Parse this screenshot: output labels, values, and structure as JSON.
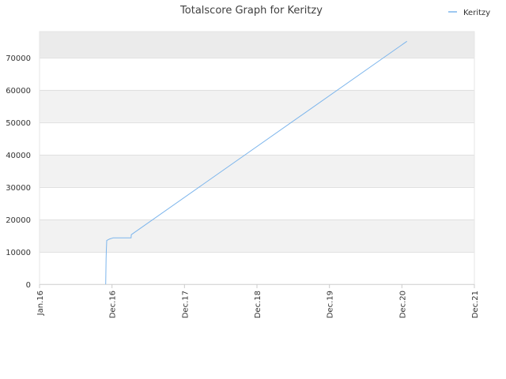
{
  "chart_data": {
    "type": "line",
    "title": "Totalscore Graph for Keritzy",
    "xlabel": "",
    "ylabel": "",
    "x_ticks": [
      "Jan.16",
      "Dec.16",
      "Dec.17",
      "Dec.18",
      "Dec.19",
      "Dec.20",
      "Dec.21"
    ],
    "xlim": [
      "2016-01",
      "2021-12"
    ],
    "y_ticks": [
      0,
      10000,
      20000,
      30000,
      40000,
      50000,
      60000,
      70000
    ],
    "ylim": [
      0,
      78000
    ],
    "grid": "horizontal bands",
    "legend_position": "top-right",
    "series": [
      {
        "name": "Keritzy",
        "color": "#7cb5ec",
        "points": [
          {
            "x": "2016-11-25",
            "y": 0
          },
          {
            "x": "2016-11-27",
            "y": 8000
          },
          {
            "x": "2016-11-28",
            "y": 10500
          },
          {
            "x": "2016-11-30",
            "y": 13500
          },
          {
            "x": "2016-12-15",
            "y": 14000
          },
          {
            "x": "2016-12-31",
            "y": 14300
          },
          {
            "x": "2017-03-31",
            "y": 14300
          },
          {
            "x": "2017-04-01",
            "y": 15300
          },
          {
            "x": "2020-12-31",
            "y": 75000
          }
        ]
      }
    ],
    "colors": {
      "band_shaded": "#f2f2f2",
      "band_top": "#ebebeb",
      "grid_line": "#e0e0e0",
      "axis": "#cccccc"
    }
  }
}
